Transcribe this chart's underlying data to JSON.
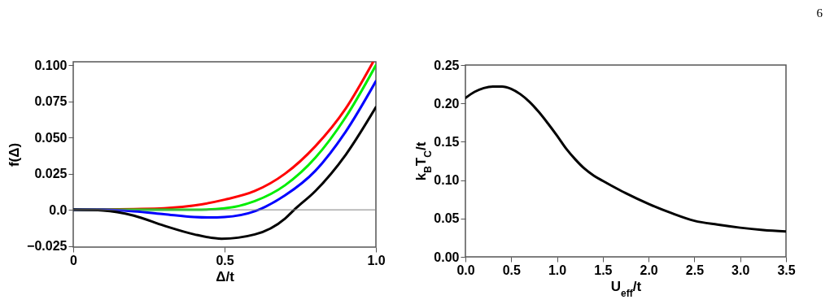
{
  "chart_data": [
    {
      "type": "line",
      "xlabel": "Δ/t",
      "ylabel": "f(Δ)",
      "xlim": [
        0,
        1
      ],
      "ylim": [
        -0.0258,
        0.1024
      ],
      "xticks": [
        0,
        0.5,
        {
          "value": 1,
          "label": "1.0"
        }
      ],
      "yticks": [
        {
          "value": -0.025,
          "label": "−0.025"
        },
        {
          "value": 0,
          "label": "0.0"
        },
        0.025,
        {
          "value": 0.05,
          "label": "0.050"
        },
        0.075,
        {
          "value": 0.1,
          "label": "0.100"
        }
      ],
      "grid": false,
      "legend": false,
      "marker": "none",
      "line_style": "solid",
      "ref_lines": [
        {
          "axis": "y",
          "value": 0,
          "color": "#808080"
        }
      ],
      "series": [
        {
          "color": "#ff0000",
          "x": [
            0,
            0.1,
            0.2,
            0.3,
            0.4,
            0.5,
            0.6,
            0.7,
            0.8,
            0.9,
            0.99
          ],
          "values": [
            0,
            0.0002,
            0.0005,
            0.001,
            0.003,
            0.007,
            0.013,
            0.025,
            0.044,
            0.07,
            0.102
          ]
        },
        {
          "color": "#00ee00",
          "x": [
            0,
            0.1,
            0.2,
            0.3,
            0.4,
            0.5,
            0.6,
            0.7,
            0.8,
            0.9,
            1.0
          ],
          "values": [
            0,
            0,
            0,
            0,
            0,
            0.001,
            0.006,
            0.017,
            0.036,
            0.064,
            0.1
          ]
        },
        {
          "color": "#0000ff",
          "x": [
            0,
            0.1,
            0.2,
            0.3,
            0.4,
            0.45,
            0.5,
            0.6,
            0.7,
            0.8,
            0.9,
            1.0
          ],
          "values": [
            0,
            0,
            -0.001,
            -0.003,
            -0.005,
            -0.0053,
            -0.005,
            -0.001,
            0.01,
            0.027,
            0.054,
            0.089
          ]
        },
        {
          "color": "#000000",
          "x": [
            0,
            0.1,
            0.2,
            0.3,
            0.4,
            0.49,
            0.6,
            0.7,
            0.73,
            0.8,
            0.9,
            1.0
          ],
          "values": [
            0,
            -0.0005,
            -0.004,
            -0.011,
            -0.017,
            -0.02,
            -0.017,
            -0.006,
            0,
            0.013,
            0.038,
            0.071
          ]
        }
      ]
    },
    {
      "type": "line",
      "xlabel": "U$_{eff}$/t",
      "ylabel": "k$_{B}$T$_{C}$/t",
      "xlim": [
        0,
        3.5
      ],
      "ylim": [
        0,
        0.25
      ],
      "xticks": [
        {
          "value": 0,
          "label": "0.0"
        },
        0.5,
        {
          "value": 1,
          "label": "1.0"
        },
        1.5,
        {
          "value": 2,
          "label": "2.0"
        },
        2.5,
        {
          "value": 3,
          "label": "3.0"
        },
        3.5
      ],
      "yticks": [
        {
          "value": 0,
          "label": "0.00"
        },
        0.05,
        {
          "value": 0.1,
          "label": "0.10"
        },
        0.15,
        {
          "value": 0.2,
          "label": "0.20"
        },
        0.25
      ],
      "grid": false,
      "legend": false,
      "marker": "none",
      "line_style": "solid",
      "annotations": [
        "6"
      ],
      "series": [
        {
          "color": "#000000",
          "x": [
            0,
            0.1,
            0.2,
            0.3,
            0.4,
            0.5,
            0.6,
            0.7,
            0.8,
            0.9,
            1.0,
            1.1,
            1.2,
            1.3,
            1.4,
            1.5,
            1.75,
            2.0,
            2.25,
            2.5,
            2.75,
            3.0,
            3.25,
            3.5
          ],
          "values": [
            0.207,
            0.215,
            0.22,
            0.222,
            0.222,
            0.219,
            0.212,
            0.202,
            0.189,
            0.174,
            0.158,
            0.141,
            0.127,
            0.115,
            0.106,
            0.099,
            0.083,
            0.069,
            0.057,
            0.047,
            0.042,
            0.038,
            0.035,
            0.033
          ]
        }
      ]
    }
  ]
}
